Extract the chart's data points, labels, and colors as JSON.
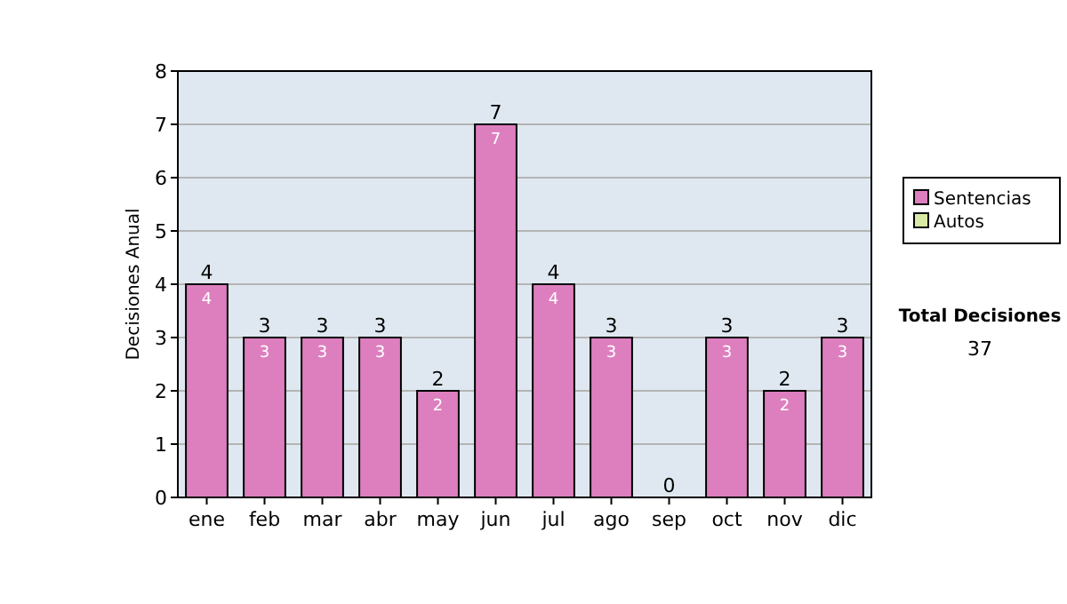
{
  "chart_data": {
    "type": "bar",
    "stacked": true,
    "ylabel": "Decisiones Anual",
    "categories": [
      "ene",
      "feb",
      "mar",
      "abr",
      "may",
      "jun",
      "jul",
      "ago",
      "sep",
      "oct",
      "nov",
      "dic"
    ],
    "series": [
      {
        "name": "Sentencias",
        "color": "#dd7fbf",
        "values": [
          4,
          3,
          3,
          3,
          2,
          7,
          4,
          3,
          0,
          3,
          2,
          3
        ],
        "value_labels": [
          "4",
          "3",
          "3",
          "3",
          "2",
          "7",
          "4",
          "3",
          null,
          "3",
          "2",
          "3"
        ]
      },
      {
        "name": "Autos",
        "color": "#d9eaa5",
        "values": [
          0,
          0,
          0,
          0,
          0,
          0,
          0,
          0,
          0,
          0,
          0,
          0
        ]
      }
    ],
    "totals": [
      "4",
      "3",
      "3",
      "3",
      "2",
      "7",
      "4",
      "3",
      "0",
      "3",
      "2",
      "3"
    ],
    "ylim": [
      0,
      8
    ],
    "yticks": [
      0,
      1,
      2,
      3,
      4,
      5,
      6,
      7,
      8
    ],
    "grid": "y",
    "legend": "right",
    "annotations": [
      "Total Decisiones",
      "37"
    ]
  }
}
